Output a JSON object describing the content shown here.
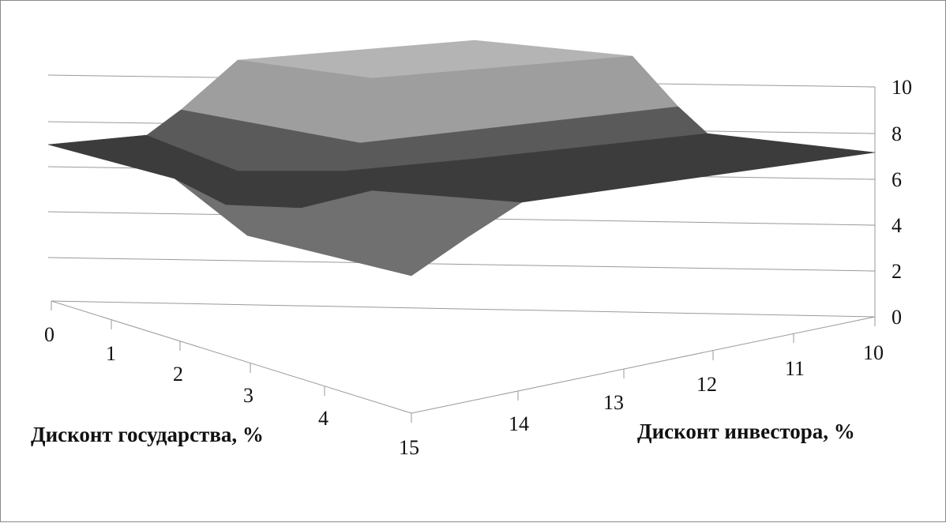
{
  "chart_data": {
    "type": "surface",
    "z_ticks": [
      "0",
      "2",
      "4",
      "6",
      "8",
      "10"
    ],
    "x_axis": {
      "label": "Дисконт государства, %",
      "ticks": [
        "0",
        "1",
        "2",
        "3",
        "4"
      ]
    },
    "y_axis": {
      "label": "Дисконт инвестора, %",
      "ticks": [
        "10",
        "11",
        "12",
        "13",
        "14",
        "15"
      ]
    },
    "z_range": [
      0,
      10
    ],
    "grid": true,
    "legend": "none",
    "colors": {
      "band_0_2": "#8c8c8c",
      "band_2_4": "#707070",
      "band_4_6": "#3c3c3c",
      "band_6_8": "#5a5a5a",
      "band_8_10": "#9e9e9e",
      "band_10_plus": "#b4b4b4"
    }
  }
}
